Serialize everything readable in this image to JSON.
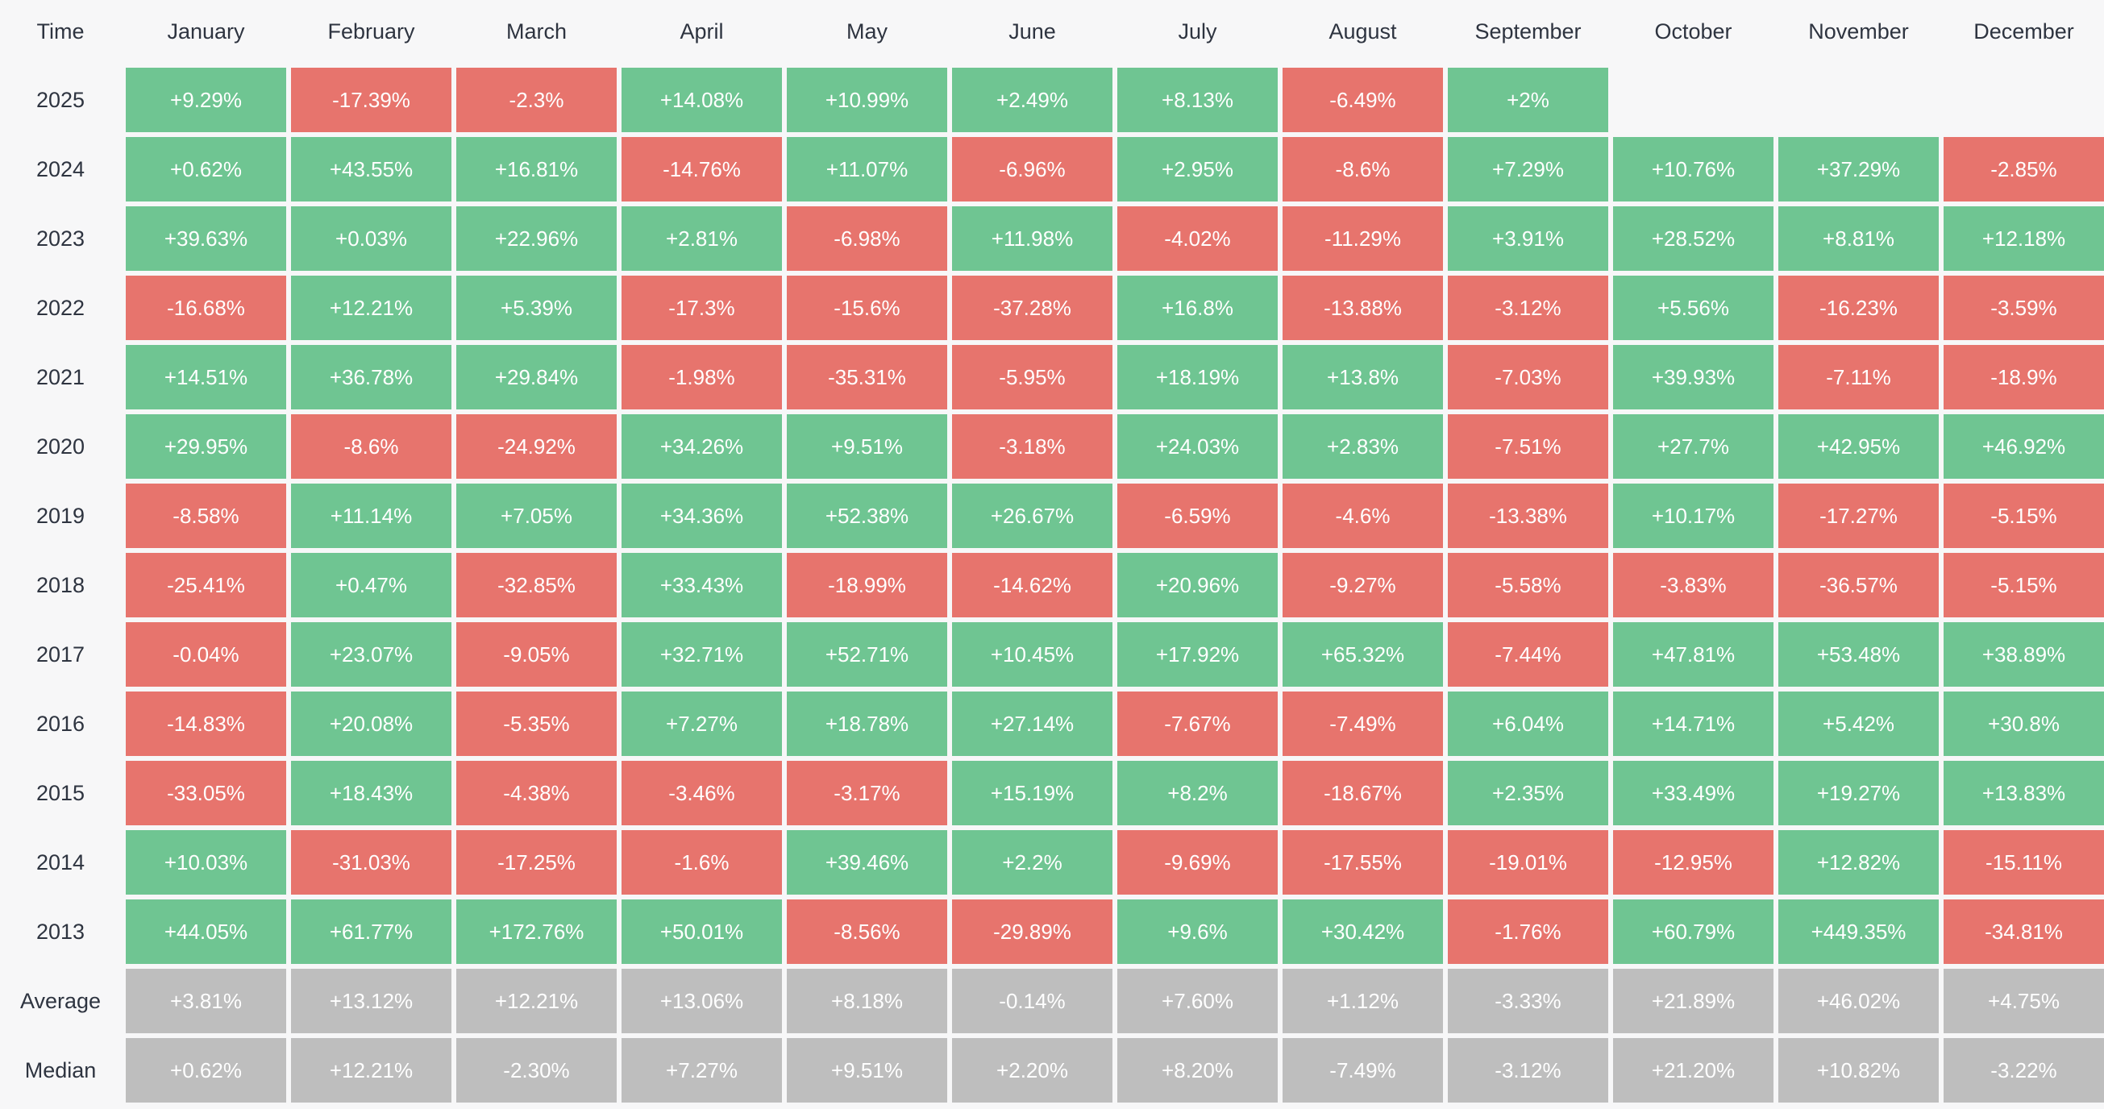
{
  "colors": {
    "positive": "#6fc592",
    "negative": "#e7746d",
    "neutral": "#bebebe",
    "background": "#f7f7f8",
    "label_text": "#2e3440",
    "cell_text": "#ffffff"
  },
  "chart_data": {
    "type": "heatmap",
    "legend_note": "green = positive monthly return, red = negative monthly return, gray = summary rows",
    "columns": [
      "Time",
      "January",
      "February",
      "March",
      "April",
      "May",
      "June",
      "July",
      "August",
      "September",
      "October",
      "November",
      "December"
    ],
    "rows": [
      {
        "label": "2025",
        "kind": "year",
        "values": [
          "+9.29%",
          "-17.39%",
          "-2.3%",
          "+14.08%",
          "+10.99%",
          "+2.49%",
          "+8.13%",
          "-6.49%",
          "+2%",
          "",
          "",
          ""
        ]
      },
      {
        "label": "2024",
        "kind": "year",
        "values": [
          "+0.62%",
          "+43.55%",
          "+16.81%",
          "-14.76%",
          "+11.07%",
          "-6.96%",
          "+2.95%",
          "-8.6%",
          "+7.29%",
          "+10.76%",
          "+37.29%",
          "-2.85%"
        ]
      },
      {
        "label": "2023",
        "kind": "year",
        "values": [
          "+39.63%",
          "+0.03%",
          "+22.96%",
          "+2.81%",
          "-6.98%",
          "+11.98%",
          "-4.02%",
          "-11.29%",
          "+3.91%",
          "+28.52%",
          "+8.81%",
          "+12.18%"
        ]
      },
      {
        "label": "2022",
        "kind": "year",
        "values": [
          "-16.68%",
          "+12.21%",
          "+5.39%",
          "-17.3%",
          "-15.6%",
          "-37.28%",
          "+16.8%",
          "-13.88%",
          "-3.12%",
          "+5.56%",
          "-16.23%",
          "-3.59%"
        ]
      },
      {
        "label": "2021",
        "kind": "year",
        "values": [
          "+14.51%",
          "+36.78%",
          "+29.84%",
          "-1.98%",
          "-35.31%",
          "-5.95%",
          "+18.19%",
          "+13.8%",
          "-7.03%",
          "+39.93%",
          "-7.11%",
          "-18.9%"
        ]
      },
      {
        "label": "2020",
        "kind": "year",
        "values": [
          "+29.95%",
          "-8.6%",
          "-24.92%",
          "+34.26%",
          "+9.51%",
          "-3.18%",
          "+24.03%",
          "+2.83%",
          "-7.51%",
          "+27.7%",
          "+42.95%",
          "+46.92%"
        ]
      },
      {
        "label": "2019",
        "kind": "year",
        "values": [
          "-8.58%",
          "+11.14%",
          "+7.05%",
          "+34.36%",
          "+52.38%",
          "+26.67%",
          "-6.59%",
          "-4.6%",
          "-13.38%",
          "+10.17%",
          "-17.27%",
          "-5.15%"
        ]
      },
      {
        "label": "2018",
        "kind": "year",
        "values": [
          "-25.41%",
          "+0.47%",
          "-32.85%",
          "+33.43%",
          "-18.99%",
          "-14.62%",
          "+20.96%",
          "-9.27%",
          "-5.58%",
          "-3.83%",
          "-36.57%",
          "-5.15%"
        ]
      },
      {
        "label": "2017",
        "kind": "year",
        "values": [
          "-0.04%",
          "+23.07%",
          "-9.05%",
          "+32.71%",
          "+52.71%",
          "+10.45%",
          "+17.92%",
          "+65.32%",
          "-7.44%",
          "+47.81%",
          "+53.48%",
          "+38.89%"
        ]
      },
      {
        "label": "2016",
        "kind": "year",
        "values": [
          "-14.83%",
          "+20.08%",
          "-5.35%",
          "+7.27%",
          "+18.78%",
          "+27.14%",
          "-7.67%",
          "-7.49%",
          "+6.04%",
          "+14.71%",
          "+5.42%",
          "+30.8%"
        ]
      },
      {
        "label": "2015",
        "kind": "year",
        "values": [
          "-33.05%",
          "+18.43%",
          "-4.38%",
          "-3.46%",
          "-3.17%",
          "+15.19%",
          "+8.2%",
          "-18.67%",
          "+2.35%",
          "+33.49%",
          "+19.27%",
          "+13.83%"
        ]
      },
      {
        "label": "2014",
        "kind": "year",
        "values": [
          "+10.03%",
          "-31.03%",
          "-17.25%",
          "-1.6%",
          "+39.46%",
          "+2.2%",
          "-9.69%",
          "-17.55%",
          "-19.01%",
          "-12.95%",
          "+12.82%",
          "-15.11%"
        ]
      },
      {
        "label": "2013",
        "kind": "year",
        "values": [
          "+44.05%",
          "+61.77%",
          "+172.76%",
          "+50.01%",
          "-8.56%",
          "-29.89%",
          "+9.6%",
          "+30.42%",
          "-1.76%",
          "+60.79%",
          "+449.35%",
          "-34.81%"
        ]
      },
      {
        "label": "Average",
        "kind": "summary",
        "values": [
          "+3.81%",
          "+13.12%",
          "+12.21%",
          "+13.06%",
          "+8.18%",
          "-0.14%",
          "+7.60%",
          "+1.12%",
          "-3.33%",
          "+21.89%",
          "+46.02%",
          "+4.75%"
        ]
      },
      {
        "label": "Median",
        "kind": "summary",
        "values": [
          "+0.62%",
          "+12.21%",
          "-2.30%",
          "+7.27%",
          "+9.51%",
          "+2.20%",
          "+8.20%",
          "-7.49%",
          "-3.12%",
          "+21.20%",
          "+10.82%",
          "-3.22%"
        ]
      }
    ]
  }
}
